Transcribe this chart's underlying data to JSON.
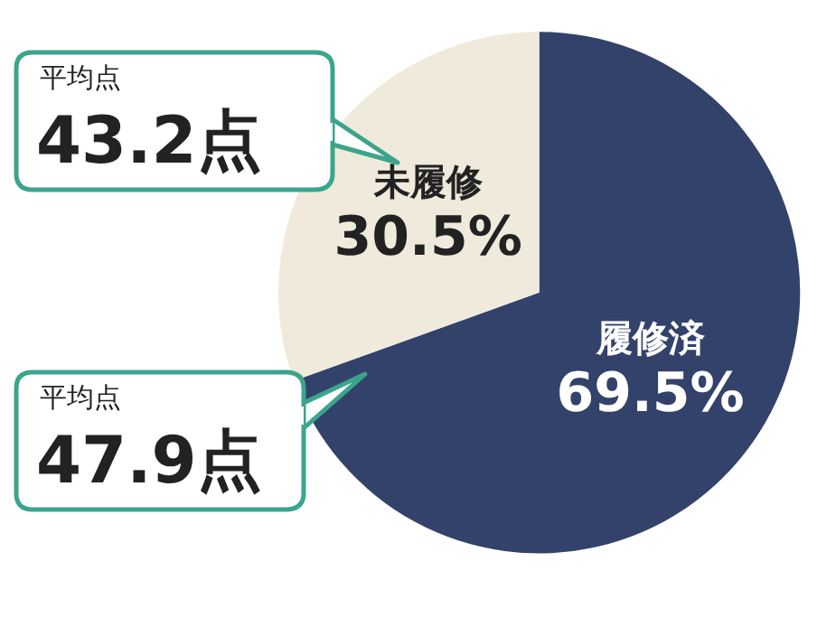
{
  "chart_data": {
    "type": "pie",
    "categories": [
      "履修済",
      "未履修"
    ],
    "values": [
      69.5,
      30.5
    ],
    "colors": [
      "#33426b",
      "#efeadb"
    ],
    "value_labels": [
      "69.5%",
      "30.5%"
    ],
    "annotations": [
      "平均点\n43.2点",
      "平均点\n47.9点"
    ],
    "legend": false
  }
}
